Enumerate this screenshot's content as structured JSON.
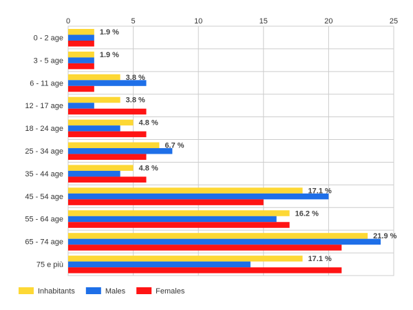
{
  "chart_data": {
    "type": "bar",
    "orientation": "horizontal",
    "categories": [
      "0 - 2 age",
      "3 - 5 age",
      "6 - 11 age",
      "12 - 17 age",
      "18 - 24 age",
      "25 - 34 age",
      "35 - 44 age",
      "45 - 54 age",
      "55 - 64 age",
      "65 - 74 age",
      "75 e più"
    ],
    "series": [
      {
        "name": "Inhabitants",
        "color": "#fdd835",
        "values": [
          2,
          2,
          4,
          4,
          5,
          7,
          5,
          18,
          17,
          23,
          18
        ],
        "labels": [
          "1.9 %",
          "1.9 %",
          "3.8 %",
          "3.8 %",
          "4.8 %",
          "6.7 %",
          "4.8 %",
          "17.1 %",
          "16.2 %",
          "21.9 %",
          "17.1 %"
        ]
      },
      {
        "name": "Males",
        "color": "#1e6fe8",
        "values": [
          2,
          2,
          6,
          2,
          4,
          8,
          4,
          20,
          16,
          24,
          14
        ]
      },
      {
        "name": "Females",
        "color": "#ff1414",
        "values": [
          2,
          2,
          2,
          6,
          6,
          6,
          6,
          15,
          17,
          21,
          21
        ]
      }
    ],
    "x_ticks": [
      0,
      5,
      10,
      15,
      20,
      25
    ],
    "xlim": [
      0,
      25
    ],
    "grid": true,
    "legend_position": "bottom-left"
  }
}
